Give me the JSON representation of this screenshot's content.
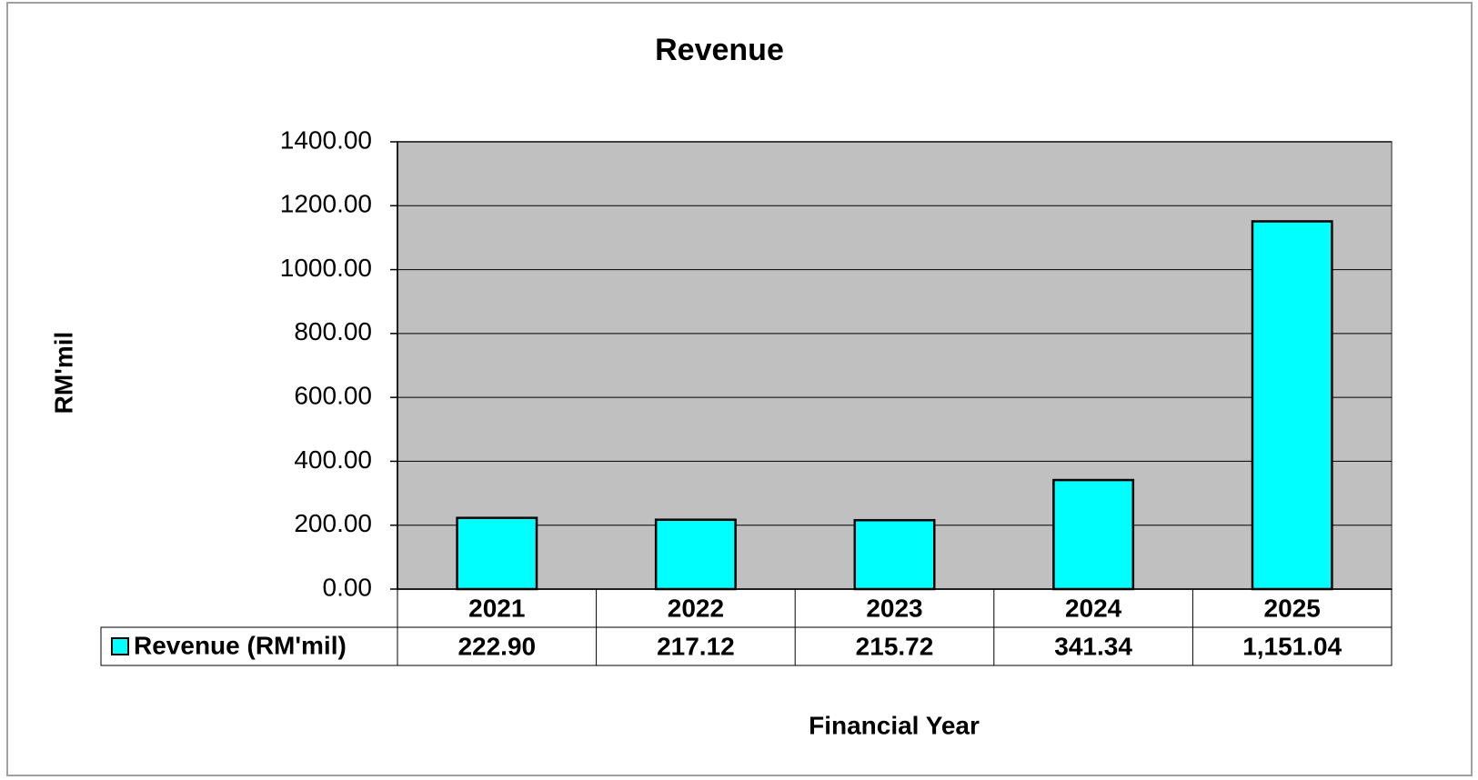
{
  "chart_data": {
    "type": "bar",
    "title": "Revenue",
    "xlabel": "Financial Year",
    "ylabel": "RM'mil",
    "categories": [
      "2021",
      "2022",
      "2023",
      "2024",
      "2025"
    ],
    "series": [
      {
        "name": "Revenue (RM'mil)",
        "color": "#00ffff",
        "values": [
          222.9,
          217.12,
          215.72,
          341.34,
          1151.04
        ],
        "value_labels": [
          "222.90",
          "217.12",
          "215.72",
          "341.34",
          "1,151.04"
        ]
      }
    ],
    "ylim": [
      0,
      1400
    ],
    "yticks": [
      {
        "value": 0,
        "label": "0.00"
      },
      {
        "value": 200,
        "label": "200.00"
      },
      {
        "value": 400,
        "label": "400.00"
      },
      {
        "value": 600,
        "label": "600.00"
      },
      {
        "value": 800,
        "label": "800.00"
      },
      {
        "value": 1000,
        "label": "1000.00"
      },
      {
        "value": 1200,
        "label": "1200.00"
      },
      {
        "value": 1400,
        "label": "1400.00"
      }
    ],
    "grid": true,
    "plot_background": "#c0c0c0"
  }
}
